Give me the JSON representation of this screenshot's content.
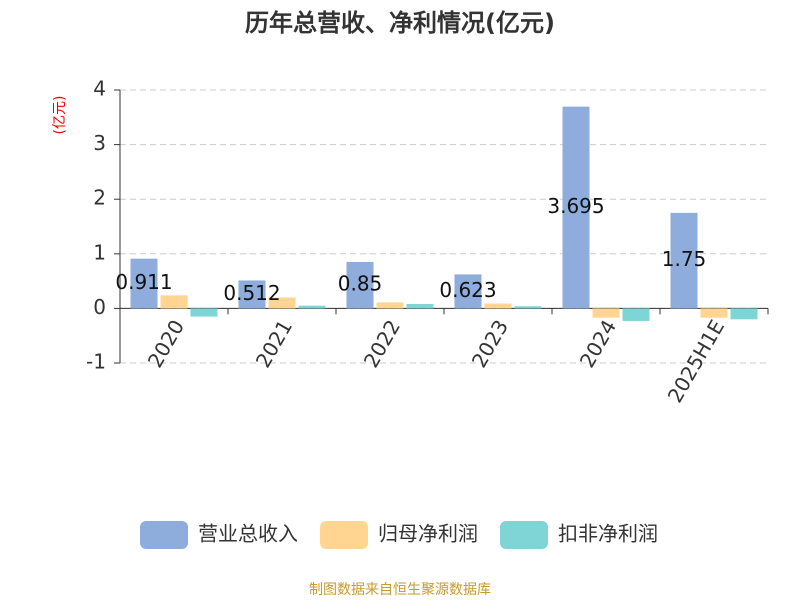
{
  "chart_data": {
    "type": "bar",
    "title": "历年总营收、净利情况(亿元)",
    "y_axis_label": "(亿元)",
    "source": "制图数据来自恒生聚源数据库",
    "categories": [
      "2020",
      "2021",
      "2022",
      "2023",
      "2024",
      "2025H1E"
    ],
    "series": [
      {
        "name": "营业总收入",
        "color": "#8eaddc",
        "values": [
          0.911,
          0.512,
          0.85,
          0.623,
          3.695,
          1.75
        ],
        "show_labels": true
      },
      {
        "name": "归母净利润",
        "color": "#ffd591",
        "values": [
          0.24,
          0.2,
          0.11,
          0.09,
          -0.17,
          -0.17
        ],
        "show_labels": false
      },
      {
        "name": "扣非净利润",
        "color": "#7fd4d6",
        "values": [
          -0.15,
          0.05,
          0.08,
          0.04,
          -0.23,
          -0.2
        ],
        "show_labels": false
      }
    ],
    "ylim": [
      -1,
      4
    ],
    "yticks": [
      -1,
      0,
      1,
      2,
      3,
      4
    ],
    "grid": true,
    "legend": "bottom"
  }
}
